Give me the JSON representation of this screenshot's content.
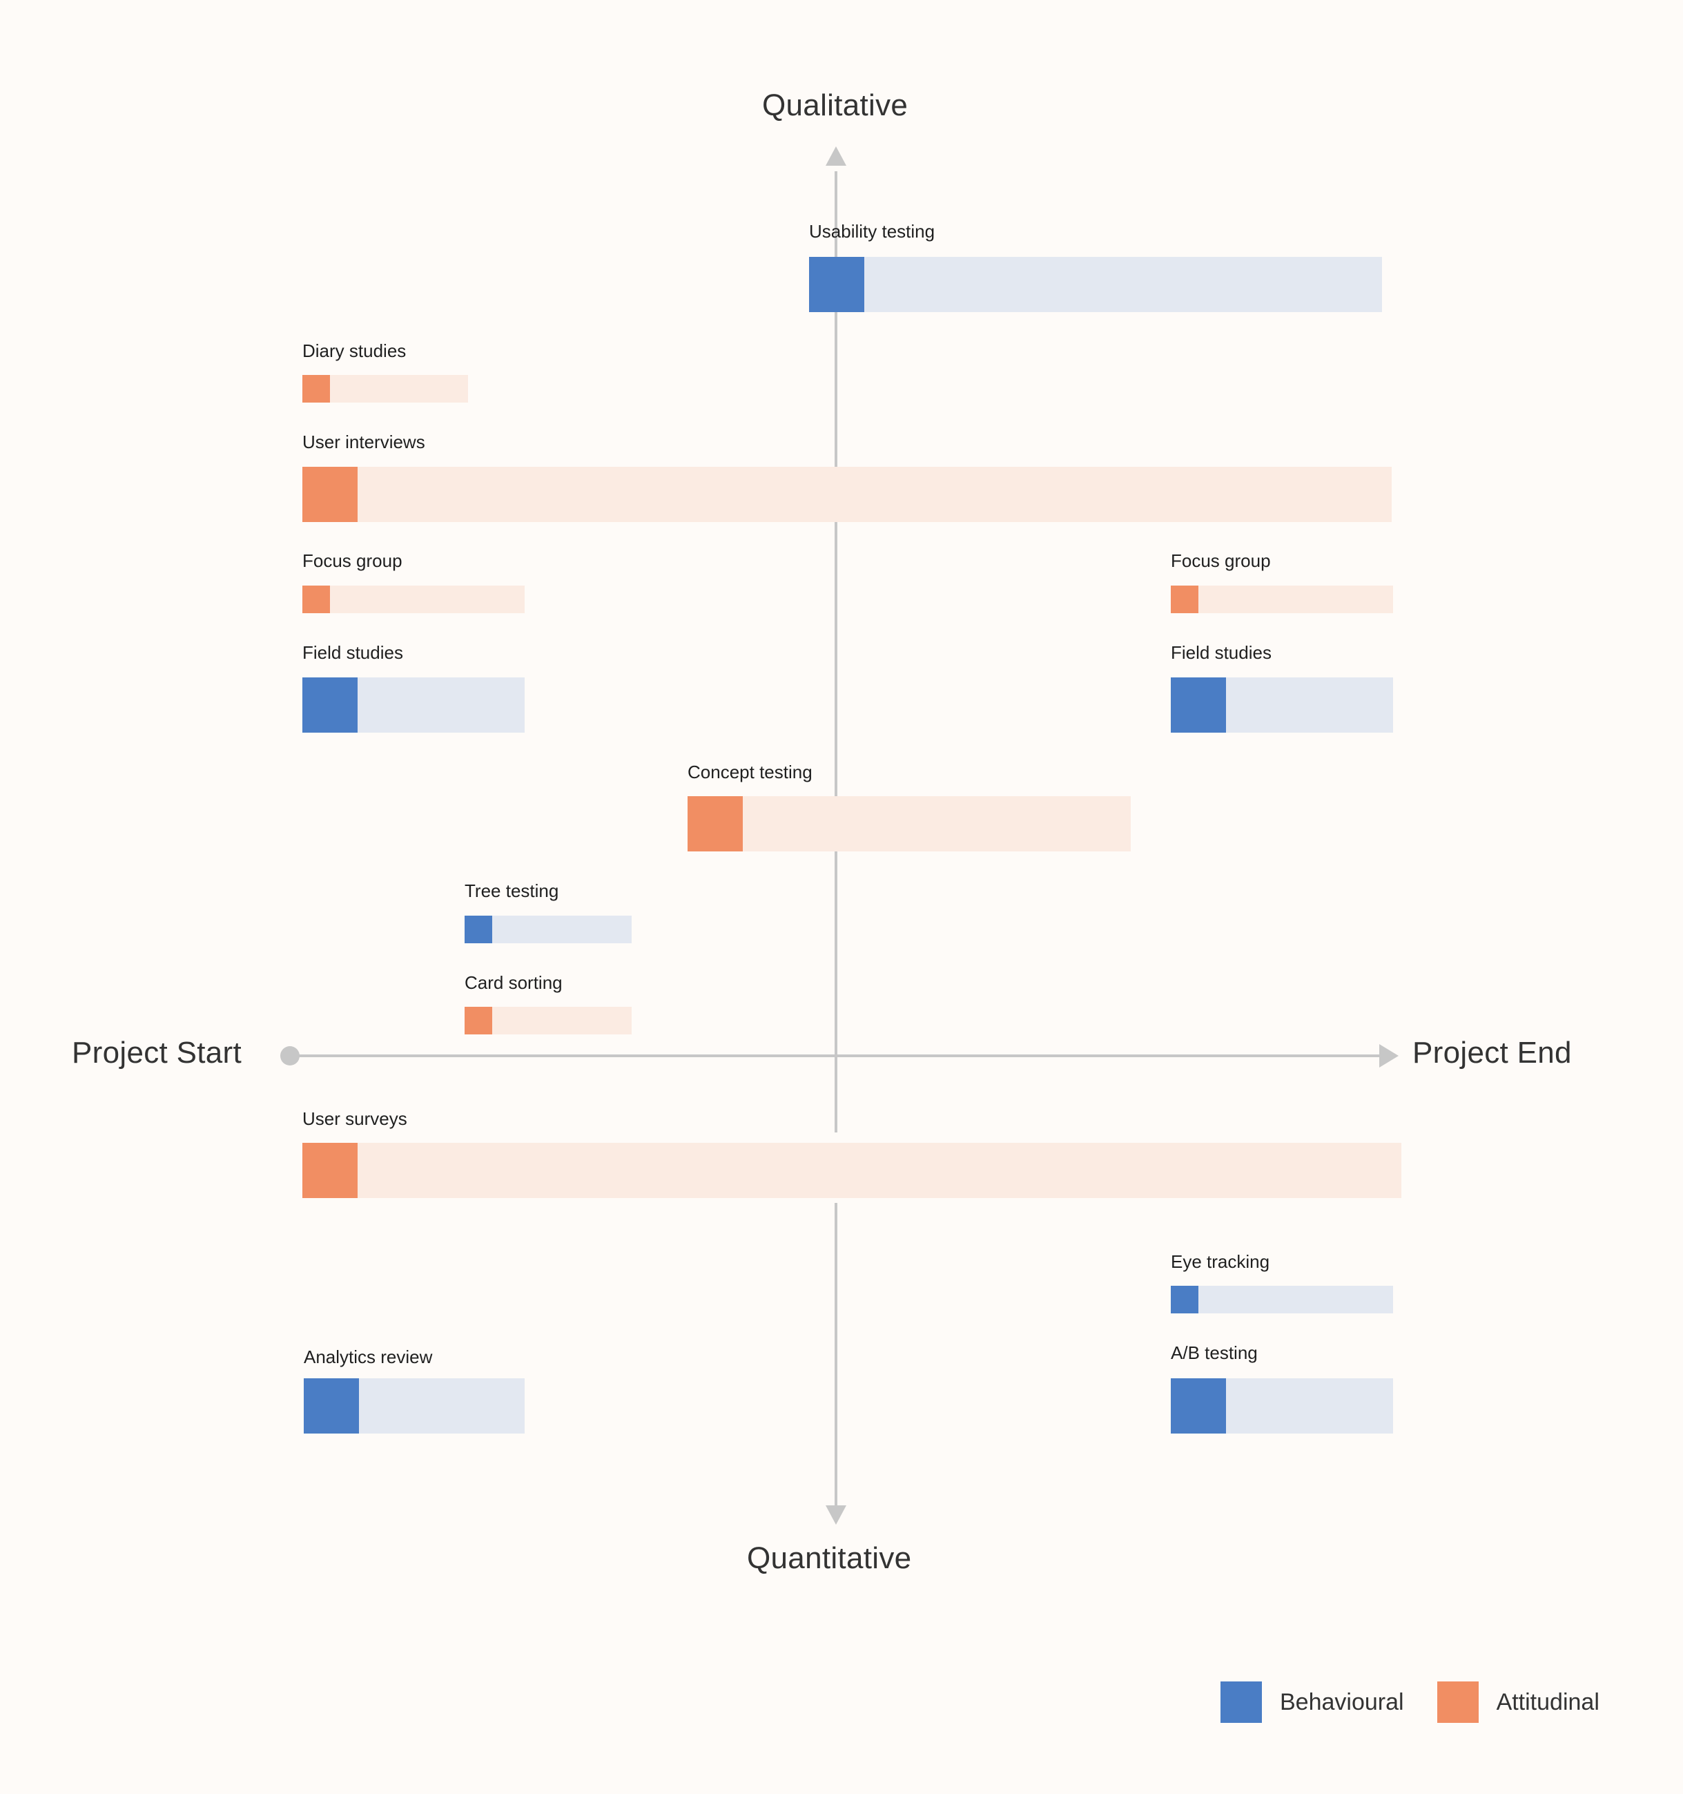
{
  "axes": {
    "top": "Qualitative",
    "bottom": "Quantitative",
    "left": "Project Start",
    "right": "Project End"
  },
  "colors": {
    "behavioural": "#4a7dc5",
    "behavioural_track": "#e3e8f1",
    "attitudinal": "#f18e63",
    "attitudinal_track": "#fbebe2",
    "axis": "#c7c7c7",
    "background": "#fefbf8"
  },
  "legend": [
    {
      "label": "Behavioural",
      "type": "behavioural"
    },
    {
      "label": "Attitudinal",
      "type": "attitudinal"
    }
  ],
  "methods": [
    {
      "label": "Usability testing",
      "type": "behavioural"
    },
    {
      "label": "Diary studies",
      "type": "attitudinal"
    },
    {
      "label": "User interviews",
      "type": "attitudinal"
    },
    {
      "label": "Focus group",
      "type": "attitudinal"
    },
    {
      "label": "Focus group",
      "type": "attitudinal"
    },
    {
      "label": "Field studies",
      "type": "behavioural"
    },
    {
      "label": "Field studies",
      "type": "behavioural"
    },
    {
      "label": "Concept testing",
      "type": "attitudinal"
    },
    {
      "label": "Tree testing",
      "type": "behavioural"
    },
    {
      "label": "Card sorting",
      "type": "attitudinal"
    },
    {
      "label": "User surveys",
      "type": "attitudinal"
    },
    {
      "label": "Eye tracking",
      "type": "behavioural"
    },
    {
      "label": "A/B testing",
      "type": "behavioural"
    },
    {
      "label": "Analytics review",
      "type": "behavioural"
    }
  ]
}
